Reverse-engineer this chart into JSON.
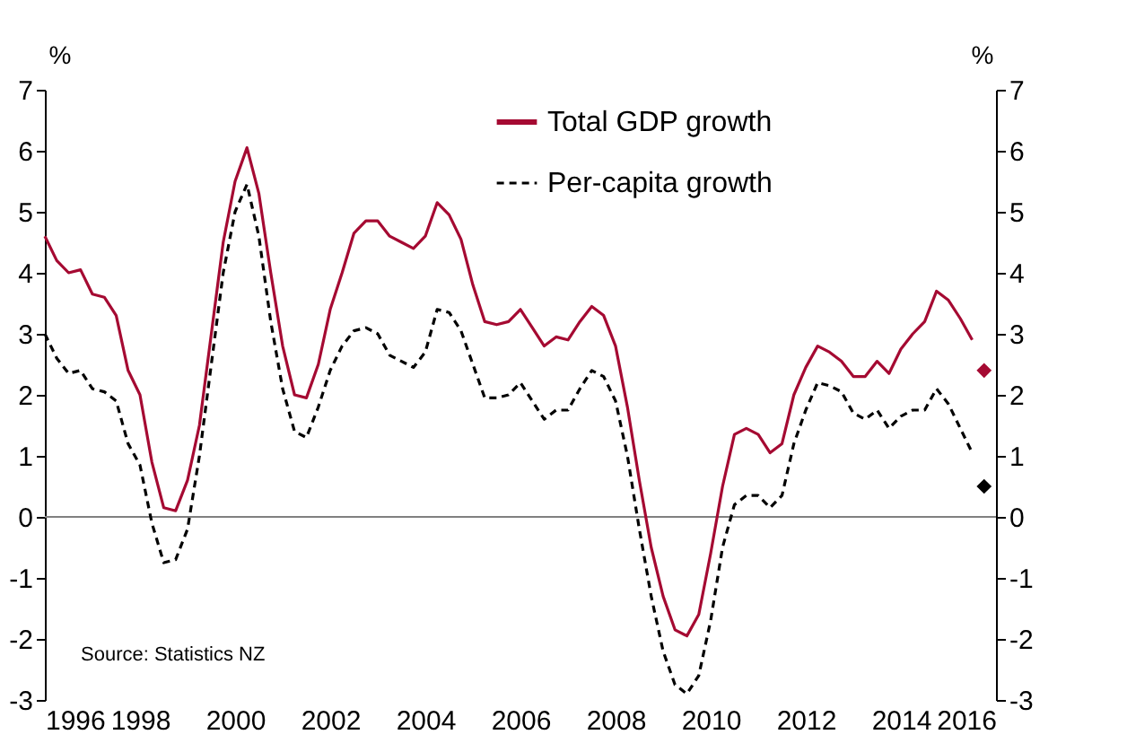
{
  "chart_data": {
    "type": "line",
    "x": [
      1996.0,
      1996.25,
      1996.5,
      1996.75,
      1997.0,
      1997.25,
      1997.5,
      1997.75,
      1998.0,
      1998.25,
      1998.5,
      1998.75,
      1999.0,
      1999.25,
      1999.5,
      1999.75,
      2000.0,
      2000.25,
      2000.5,
      2000.75,
      2001.0,
      2001.25,
      2001.5,
      2001.75,
      2002.0,
      2002.25,
      2002.5,
      2002.75,
      2003.0,
      2003.25,
      2003.5,
      2003.75,
      2004.0,
      2004.25,
      2004.5,
      2004.75,
      2005.0,
      2005.25,
      2005.5,
      2005.75,
      2006.0,
      2006.25,
      2006.5,
      2006.75,
      2007.0,
      2007.25,
      2007.5,
      2007.75,
      2008.0,
      2008.25,
      2008.5,
      2008.75,
      2009.0,
      2009.25,
      2009.5,
      2009.75,
      2010.0,
      2010.25,
      2010.5,
      2010.75,
      2011.0,
      2011.25,
      2011.5,
      2011.75,
      2012.0,
      2012.25,
      2012.5,
      2012.75,
      2013.0,
      2013.25,
      2013.5,
      2013.75,
      2014.0,
      2014.25,
      2014.5,
      2014.75,
      2015.0,
      2015.25,
      2015.5
    ],
    "series": [
      {
        "name": "Total GDP growth",
        "color": "#a50a32",
        "line_style": "solid",
        "values": [
          4.6,
          4.2,
          4.0,
          4.05,
          3.65,
          3.6,
          3.3,
          2.4,
          2.0,
          0.9,
          0.15,
          0.1,
          0.6,
          1.5,
          3.0,
          4.5,
          5.5,
          6.05,
          5.3,
          4.0,
          2.8,
          2.0,
          1.95,
          2.5,
          3.4,
          4.0,
          4.65,
          4.85,
          4.85,
          4.6,
          4.5,
          4.4,
          4.6,
          5.15,
          4.95,
          4.55,
          3.8,
          3.2,
          3.15,
          3.2,
          3.4,
          3.1,
          2.8,
          2.95,
          2.9,
          3.2,
          3.45,
          3.3,
          2.8,
          1.8,
          0.6,
          -0.5,
          -1.3,
          -1.85,
          -1.95,
          -1.6,
          -0.6,
          0.5,
          1.35,
          1.45,
          1.35,
          1.05,
          1.2,
          2.0,
          2.45,
          2.8,
          2.7,
          2.55,
          2.3,
          2.3,
          2.55,
          2.35,
          2.75,
          3.0,
          3.2,
          3.7,
          3.55,
          3.25,
          2.9
        ]
      },
      {
        "name": "Per-capita growth",
        "color": "#000000",
        "line_style": "dashed",
        "values": [
          3.0,
          2.6,
          2.35,
          2.4,
          2.1,
          2.05,
          1.9,
          1.2,
          0.85,
          -0.1,
          -0.75,
          -0.7,
          -0.2,
          1.0,
          2.5,
          4.0,
          5.0,
          5.45,
          4.6,
          3.2,
          2.1,
          1.4,
          1.3,
          1.8,
          2.4,
          2.8,
          3.05,
          3.1,
          3.0,
          2.65,
          2.55,
          2.45,
          2.7,
          3.4,
          3.35,
          3.05,
          2.5,
          1.95,
          1.95,
          2.0,
          2.2,
          1.9,
          1.6,
          1.75,
          1.75,
          2.1,
          2.4,
          2.3,
          1.9,
          1.0,
          -0.2,
          -1.3,
          -2.2,
          -2.75,
          -2.9,
          -2.6,
          -1.7,
          -0.5,
          0.2,
          0.35,
          0.35,
          0.15,
          0.35,
          1.2,
          1.75,
          2.2,
          2.15,
          2.05,
          1.7,
          1.6,
          1.75,
          1.45,
          1.65,
          1.75,
          1.75,
          2.1,
          1.85,
          1.45,
          1.05
        ]
      },
      {
        "type": "scatter",
        "marker": "diamond",
        "color": "#a50a32",
        "x": [
          2015.75
        ],
        "values": [
          2.4
        ]
      },
      {
        "type": "scatter",
        "marker": "diamond",
        "color": "#000000",
        "x": [
          2015.75
        ],
        "values": [
          0.5
        ]
      }
    ],
    "xlim": [
      1996,
      2016
    ],
    "xticks": [
      1996,
      1998,
      2000,
      2002,
      2004,
      2006,
      2008,
      2010,
      2012,
      2014,
      2016
    ],
    "ylim": [
      -3,
      7
    ],
    "yticks": [
      -3,
      -2,
      -1,
      0,
      1,
      2,
      3,
      4,
      5,
      6,
      7
    ],
    "y2lim": [
      -3,
      7
    ],
    "y2ticks": [
      -3,
      -2,
      -1,
      0,
      1,
      2,
      3,
      4,
      5,
      6,
      7
    ],
    "ylabel": "%",
    "y2label": "%",
    "ref_lines": [
      {
        "axis": "y",
        "value": 0,
        "color": "#808080"
      }
    ],
    "annotations": [
      "Source: Statistics NZ"
    ],
    "legend": "top",
    "grid": false,
    "marker": "none"
  }
}
